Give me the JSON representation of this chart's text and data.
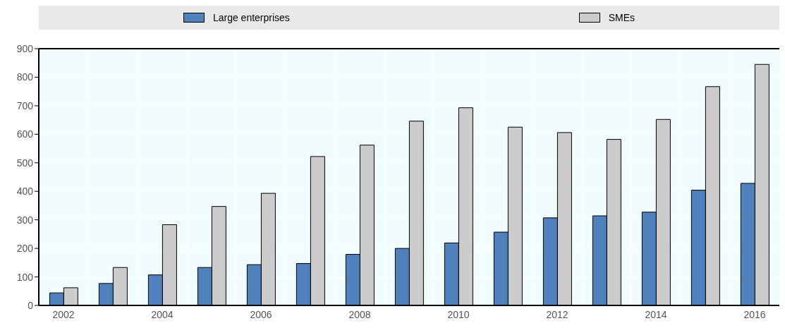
{
  "chart_data": {
    "type": "bar",
    "categories": [
      "2002",
      null,
      "2004",
      null,
      "2006",
      null,
      "2008",
      null,
      "2010",
      null,
      "2012",
      null,
      "2014",
      null,
      "2016"
    ],
    "series": [
      {
        "name": "Large enterprises",
        "color": "#4f81bd",
        "values": [
          44,
          77,
          107,
          133,
          143,
          147,
          179,
          200,
          219,
          257,
          307,
          314,
          327,
          404,
          428
        ]
      },
      {
        "name": "SMEs",
        "color": "#cccccc",
        "values": [
          62,
          133,
          283,
          347,
          393,
          522,
          562,
          646,
          693,
          625,
          606,
          582,
          652,
          767,
          845
        ]
      }
    ],
    "ylim": [
      0,
      900
    ],
    "yticks": [
      0,
      100,
      200,
      300,
      400,
      500,
      600,
      700,
      800,
      900
    ],
    "grid": true,
    "legend": "top"
  }
}
